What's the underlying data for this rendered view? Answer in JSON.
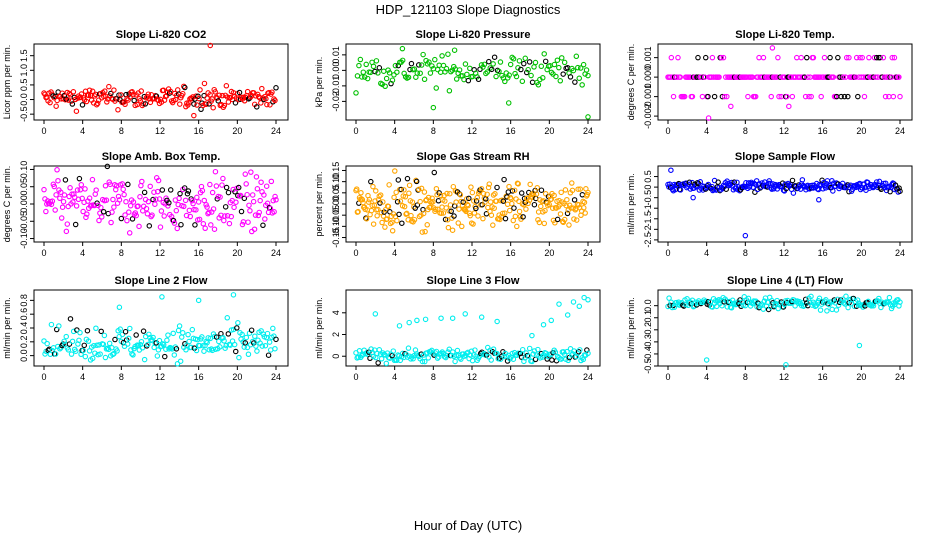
{
  "page_title": "HDP_121103  Slope Diagnostics",
  "x_axis_label": "Hour of Day (UTC)",
  "chart_data": [
    {
      "type": "scatter",
      "title": "Slope Li-820 CO2",
      "ylabel": "Licor ppm per min.",
      "xlim": [
        0,
        24
      ],
      "ylim": [
        -0.7,
        1.9
      ],
      "xticks": [
        0,
        4,
        8,
        12,
        16,
        20,
        24
      ],
      "yticks": [
        -0.5,
        0,
        0.5,
        1,
        1.5
      ],
      "ytick_labels": [
        "-0.5",
        "0.0",
        "0.5",
        "1.0",
        "1.5"
      ],
      "color": "#ff0000",
      "center": 0.05,
      "spread": 0.17,
      "n": 230,
      "outliers": [
        [
          17.2,
          1.85
        ],
        [
          16.6,
          0.55
        ],
        [
          15.5,
          -0.55
        ]
      ]
    },
    {
      "type": "scatter",
      "title": "Slope Li-820 Pressure",
      "ylabel": "kPa per min.",
      "xlim": [
        0,
        24
      ],
      "ylim": [
        -0.032,
        0.017
      ],
      "xticks": [
        0,
        4,
        8,
        12,
        16,
        20,
        24
      ],
      "yticks": [
        -0.02,
        -0.01,
        0,
        0.01
      ],
      "ytick_labels": [
        "-0.02",
        "-0.01",
        "0.00",
        "0.01"
      ],
      "color": "#00c000",
      "center": 0.0,
      "spread": 0.005,
      "n": 160,
      "outliers": [
        [
          8,
          -0.024
        ],
        [
          15.8,
          -0.021
        ],
        [
          24,
          -0.03
        ],
        [
          4.8,
          0.014
        ],
        [
          10.2,
          0.013
        ]
      ]
    },
    {
      "type": "scatter",
      "title": "Slope Li-820 Temp.",
      "ylabel": "degrees C per min.",
      "xlim": [
        0,
        24
      ],
      "ylim": [
        -0.0022,
        0.0017
      ],
      "xticks": [
        0,
        4,
        8,
        12,
        16,
        20,
        24
      ],
      "yticks": [
        -0.002,
        -0.001,
        0,
        0.001
      ],
      "ytick_labels": [
        "-0.002",
        "-0.001",
        "0.000",
        "0.001"
      ],
      "color": "#ff00ff",
      "center": 0.0,
      "spread": 0.0,
      "n": 210,
      "quantized": [
        -0.001,
        0,
        0.001
      ],
      "outliers": [
        [
          10.8,
          0.0015
        ],
        [
          4.2,
          -0.0021
        ],
        [
          6.5,
          -0.0015
        ],
        [
          12.5,
          -0.0015
        ]
      ]
    },
    {
      "type": "scatter",
      "title": "Slope Amb. Box Temp.",
      "ylabel": "degrees C per min.",
      "xlim": [
        0,
        24
      ],
      "ylim": [
        -0.11,
        0.11
      ],
      "xticks": [
        0,
        4,
        8,
        12,
        16,
        20,
        24
      ],
      "yticks": [
        -0.1,
        -0.05,
        0,
        0.05,
        0.1
      ],
      "ytick_labels": [
        "-0.10",
        "-0.05",
        "0.00",
        "0.05",
        "0.10"
      ],
      "color": "#ff00ff",
      "center": 0.0,
      "spread": 0.04,
      "n": 250,
      "outliers": []
    },
    {
      "type": "scatter",
      "title": "Slope Gas Stream RH",
      "ylabel": "percent per min.",
      "xlim": [
        0,
        24
      ],
      "ylim": [
        -0.17,
        0.17
      ],
      "xticks": [
        0,
        4,
        8,
        12,
        16,
        20,
        24
      ],
      "yticks": [
        -0.15,
        -0.1,
        -0.05,
        0,
        0.05,
        0.1,
        0.15
      ],
      "ytick_labels": [
        "-0.15",
        "-0.10",
        "-0.05",
        "0.00",
        "0.05",
        "0.10",
        "0.15"
      ],
      "color": "#ffa500",
      "center": 0.0,
      "spread": 0.05,
      "n": 330,
      "outliers": []
    },
    {
      "type": "scatter",
      "title": "Slope Sample Flow",
      "ylabel": "ml/min per min.",
      "xlim": [
        0,
        24
      ],
      "ylim": [
        -2.6,
        1.0
      ],
      "xticks": [
        0,
        4,
        8,
        12,
        16,
        20,
        24
      ],
      "yticks": [
        -2.5,
        -2,
        -1.5,
        -1,
        -0.5,
        0,
        0.5
      ],
      "ytick_labels": [
        "-2.5",
        "-2",
        "-1.5",
        "-1",
        "-0.5",
        "0",
        "0.5"
      ],
      "color": "#0000ff",
      "center": 0.05,
      "spread": 0.12,
      "n": 260,
      "outliers": [
        [
          8,
          -2.3
        ],
        [
          0.3,
          0.8
        ],
        [
          15.6,
          -0.6
        ],
        [
          2.6,
          -0.5
        ]
      ]
    },
    {
      "type": "scatter",
      "title": "Slope Line 2 Flow",
      "ylabel": "ml/min per min.",
      "xlim": [
        0,
        24
      ],
      "ylim": [
        -0.15,
        0.95
      ],
      "xticks": [
        0,
        4,
        8,
        12,
        16,
        20,
        24
      ],
      "yticks": [
        0,
        0.2,
        0.4,
        0.6,
        0.8
      ],
      "ytick_labels": [
        "0.0",
        "0.2",
        "0.4",
        "0.6",
        "0.8"
      ],
      "color": "#00eeee",
      "center": 0.18,
      "spread": 0.12,
      "n": 220,
      "outliers": [
        [
          12.2,
          0.85
        ],
        [
          16,
          0.8
        ],
        [
          19.6,
          0.88
        ],
        [
          7.8,
          0.7
        ]
      ]
    },
    {
      "type": "scatter",
      "title": "Slope Line 3 Flow",
      "ylabel": "ml/min per min.",
      "xlim": [
        0,
        24
      ],
      "ylim": [
        -0.9,
        6.1
      ],
      "xticks": [
        0,
        4,
        8,
        12,
        16,
        20,
        24
      ],
      "yticks": [
        0,
        2,
        4
      ],
      "ytick_labels": [
        "0",
        "2",
        "4"
      ],
      "color": "#00eeee",
      "center": 0.1,
      "spread": 0.3,
      "n": 200,
      "outliers": [
        [
          2,
          3.9
        ],
        [
          4.5,
          2.8
        ],
        [
          5.5,
          3.1
        ],
        [
          6.3,
          3.3
        ],
        [
          7.2,
          3.4
        ],
        [
          8.8,
          3.5
        ],
        [
          10,
          3.5
        ],
        [
          11.3,
          3.9
        ],
        [
          13,
          3.6
        ],
        [
          14.6,
          3.2
        ],
        [
          18.2,
          1.9
        ],
        [
          19.4,
          2.9
        ],
        [
          20.2,
          3.3
        ],
        [
          21,
          4.8
        ],
        [
          21.9,
          3.8
        ],
        [
          22.5,
          5.0
        ],
        [
          23.1,
          4.6
        ],
        [
          23.6,
          5.4
        ],
        [
          24,
          5.2
        ]
      ]
    },
    {
      "type": "scatter",
      "title": "Slope Line 4 (LT) Flow",
      "ylabel": "ml/min per min.",
      "xlim": [
        0,
        24
      ],
      "ylim": [
        -0.5,
        0.13
      ],
      "xticks": [
        0,
        4,
        8,
        12,
        16,
        20,
        24
      ],
      "yticks": [
        -0.5,
        -0.4,
        -0.3,
        -0.2,
        -0.1,
        0
      ],
      "ytick_labels": [
        "-0.5",
        "-0.4",
        "-0.3",
        "-0.2",
        "-0.1",
        "0.0"
      ],
      "color": "#00eeee",
      "center": 0.02,
      "spread": 0.025,
      "n": 220,
      "outliers": [
        [
          4,
          -0.45
        ],
        [
          12.2,
          -0.49
        ],
        [
          19.8,
          -0.33
        ]
      ]
    }
  ]
}
